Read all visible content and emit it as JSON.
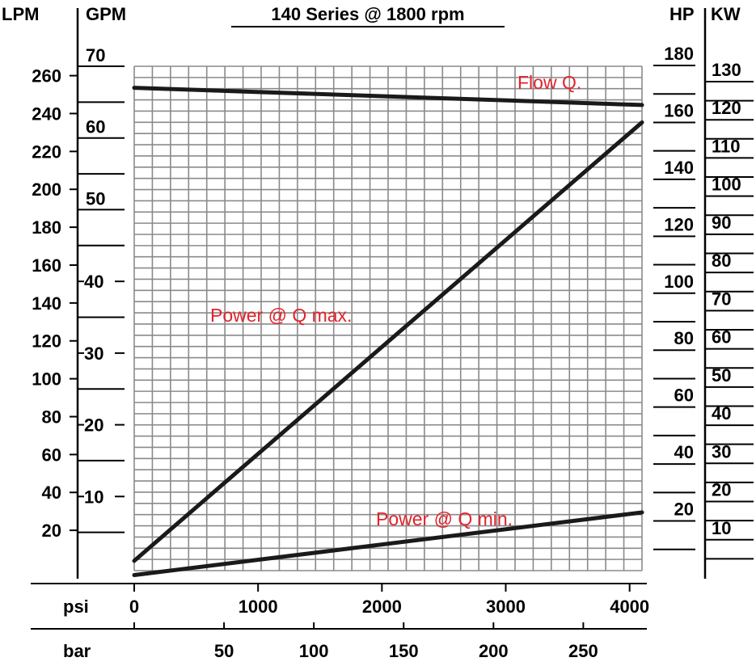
{
  "chart_data": {
    "type": "line",
    "title": "140 Series @ 1800 rpm",
    "x_axis": {
      "label": "psi",
      "ticks": [
        "0",
        "1000",
        "2000",
        "3000",
        "4000"
      ],
      "range": [
        0,
        4100
      ]
    },
    "x_axis_secondary": {
      "label": "bar",
      "ticks": [
        "50",
        "100",
        "150",
        "200",
        "250"
      ]
    },
    "left_axes": [
      {
        "label": "LPM",
        "ticks": [
          "260",
          "240",
          "220",
          "200",
          "180",
          "160",
          "140",
          "120",
          "100",
          "80",
          "60",
          "40",
          "20"
        ]
      },
      {
        "label": "GPM",
        "ticks": [
          "70",
          "60",
          "50",
          "40",
          "30",
          "20",
          "10"
        ]
      }
    ],
    "right_axes": [
      {
        "label": "HP",
        "ticks": [
          "180",
          "160",
          "140",
          "120",
          "100",
          "80",
          "60",
          "40",
          "20"
        ],
        "range": [
          0,
          180
        ]
      },
      {
        "label": "KW",
        "ticks": [
          "130",
          "120",
          "110",
          "100",
          "90",
          "80",
          "70",
          "60",
          "50",
          "40",
          "30",
          "20",
          "10"
        ]
      }
    ],
    "grid": true,
    "series": [
      {
        "name": "Flow Q.",
        "unit": "GPM",
        "x": [
          0,
          4100
        ],
        "y": [
          67,
          64.6
        ]
      },
      {
        "name": "Power @ Q max.",
        "unit": "HP",
        "x": [
          0,
          4100
        ],
        "y": [
          6,
          160
        ]
      },
      {
        "name": "Power @ Q min.",
        "unit": "HP",
        "x": [
          0,
          4100
        ],
        "y": [
          1,
          23
        ]
      }
    ]
  }
}
